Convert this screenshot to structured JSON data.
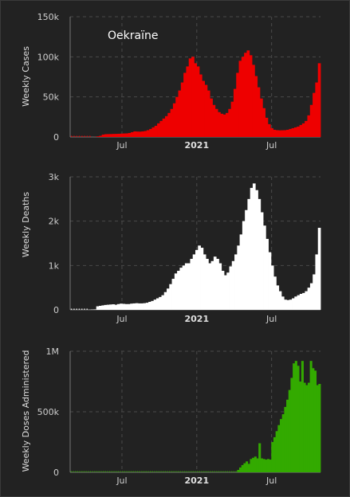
{
  "chart_data": [
    {
      "type": "bar",
      "title": "Oekraïne",
      "ylabel": "Weekly Cases",
      "color": "#ee0000",
      "yticks": [
        {
          "v": 0,
          "label": "0"
        },
        {
          "v": 50000,
          "label": "50k"
        },
        {
          "v": 100000,
          "label": "100k"
        },
        {
          "v": 150000,
          "label": "150k"
        }
      ],
      "ylim": [
        0,
        150000
      ],
      "xticks": [
        {
          "w": 18,
          "label": "Jul",
          "bold": false
        },
        {
          "w": 44,
          "label": "2021",
          "bold": true
        },
        {
          "w": 70,
          "label": "Jul",
          "bold": false
        }
      ],
      "values": [
        0,
        0,
        0,
        0,
        0,
        0,
        0,
        0,
        50,
        150,
        800,
        1500,
        3000,
        3500,
        3600,
        3700,
        3800,
        3900,
        4000,
        4200,
        4400,
        4500,
        5000,
        6000,
        7000,
        6800,
        6700,
        7000,
        7500,
        8500,
        10000,
        12000,
        14000,
        17000,
        20000,
        23000,
        26000,
        30000,
        35000,
        42000,
        50000,
        58000,
        68000,
        80000,
        88000,
        98000,
        100000,
        92000,
        88000,
        78000,
        70000,
        65000,
        58000,
        48000,
        40000,
        35000,
        31000,
        29000,
        28000,
        30000,
        35000,
        44000,
        60000,
        80000,
        95000,
        100000,
        105000,
        108000,
        102000,
        90000,
        76000,
        62000,
        48000,
        36000,
        24000,
        16000,
        11000,
        9000,
        8500,
        8300,
        8400,
        8500,
        9000,
        10000,
        11000,
        12000,
        13000,
        15000,
        17000,
        20000,
        27000,
        40000,
        55000,
        68000,
        92000
      ]
    },
    {
      "type": "bar",
      "title": "",
      "ylabel": "Weekly Deaths",
      "color": "#ffffff",
      "yticks": [
        {
          "v": 0,
          "label": "0"
        },
        {
          "v": 1000,
          "label": "1k"
        },
        {
          "v": 2000,
          "label": "2k"
        },
        {
          "v": 3000,
          "label": "3k"
        }
      ],
      "ylim": [
        0,
        3000
      ],
      "xticks": [
        {
          "w": 18,
          "label": "Jul",
          "bold": false
        },
        {
          "w": 44,
          "label": "2021",
          "bold": true
        },
        {
          "w": 70,
          "label": "Jul",
          "bold": false
        }
      ],
      "values": [
        0,
        0,
        0,
        0,
        0,
        0,
        0,
        5,
        8,
        10,
        80,
        90,
        100,
        110,
        115,
        120,
        125,
        115,
        130,
        140,
        135,
        130,
        130,
        140,
        145,
        150,
        145,
        145,
        150,
        160,
        180,
        200,
        230,
        260,
        290,
        330,
        400,
        480,
        580,
        700,
        820,
        880,
        950,
        1000,
        1050,
        1050,
        1150,
        1250,
        1350,
        1450,
        1400,
        1250,
        1150,
        1050,
        1100,
        1200,
        1150,
        1050,
        880,
        780,
        840,
        980,
        1100,
        1250,
        1450,
        1700,
        2000,
        2250,
        2500,
        2750,
        2850,
        2700,
        2500,
        2200,
        1900,
        1600,
        1300,
        1000,
        750,
        550,
        420,
        300,
        230,
        220,
        230,
        260,
        300,
        330,
        360,
        380,
        420,
        500,
        600,
        800,
        1250,
        1850
      ]
    },
    {
      "type": "bar",
      "title": "",
      "ylabel": "Weekly Doses Administered",
      "color": "#33aa00",
      "yticks": [
        {
          "v": 0,
          "label": "0"
        },
        {
          "v": 500000,
          "label": "500k"
        },
        {
          "v": 1000000,
          "label": "1M"
        }
      ],
      "ylim": [
        0,
        1000000
      ],
      "xticks": [
        {
          "w": 18,
          "label": "Jul",
          "bold": false
        },
        {
          "w": 44,
          "label": "2021",
          "bold": true
        },
        {
          "w": 70,
          "label": "Jul",
          "bold": false
        }
      ],
      "values": [
        0,
        0,
        0,
        0,
        0,
        0,
        0,
        0,
        0,
        0,
        0,
        0,
        0,
        0,
        0,
        0,
        0,
        0,
        0,
        0,
        0,
        0,
        0,
        0,
        0,
        0,
        0,
        0,
        0,
        0,
        0,
        0,
        0,
        0,
        0,
        0,
        0,
        0,
        0,
        0,
        0,
        0,
        0,
        0,
        0,
        0,
        0,
        0,
        0,
        0,
        0,
        0,
        0,
        0,
        0,
        0,
        0,
        0,
        0,
        0,
        0,
        0,
        0,
        0,
        0,
        0,
        0,
        0,
        0,
        0,
        0,
        0,
        0,
        0,
        0,
        0,
        0,
        0,
        20000,
        40000,
        60000,
        75000,
        90000,
        70000,
        110000,
        120000,
        130000,
        115000,
        240000,
        115000,
        110000,
        105000,
        110000,
        105000,
        250000,
        290000,
        340000,
        390000,
        440000,
        480000,
        540000,
        600000,
        680000,
        780000,
        900000,
        920000,
        880000,
        750000,
        920000,
        740000,
        720000,
        740000,
        920000,
        860000,
        840000,
        720000,
        730000
      ]
    }
  ]
}
